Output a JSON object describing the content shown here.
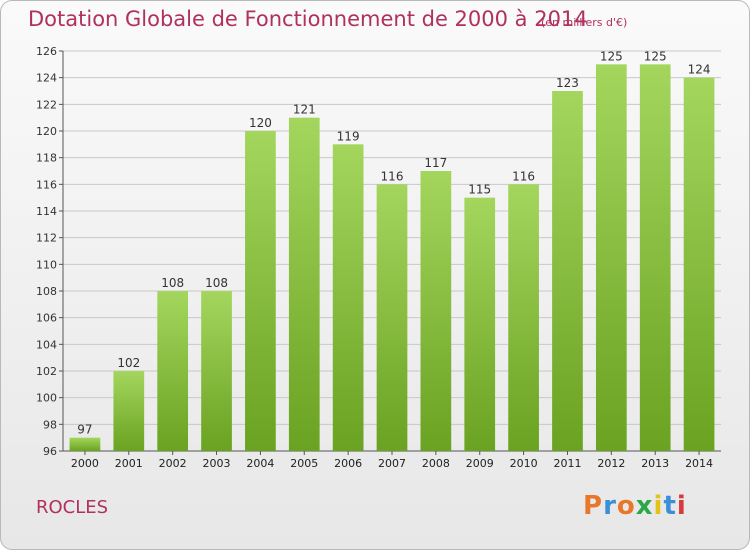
{
  "title": "Dotation Globale de Fonctionnement de 2000 à 2014",
  "subtitle": "(en milliers d'€)",
  "commune": "ROCLES",
  "logo": {
    "letters": [
      "P",
      "r",
      "o",
      "x",
      "i",
      "t",
      "i"
    ],
    "colors": [
      "#e8762b",
      "#3a8fd6",
      "#e8762b",
      "#2aa84a",
      "#e2c319",
      "#3a8fd6",
      "#d63a3a"
    ]
  },
  "colors": {
    "bar_light": "#a4d65e",
    "bar_dark": "#6aa221",
    "grid": "#c8c8c8",
    "title": "#b0305f"
  },
  "chart_data": {
    "type": "bar",
    "title": "Dotation Globale de Fonctionnement de 2000 à 2014",
    "subtitle": "(en milliers d'€)",
    "xlabel": "",
    "ylabel": "",
    "categories": [
      "2000",
      "2001",
      "2002",
      "2003",
      "2004",
      "2005",
      "2006",
      "2007",
      "2008",
      "2009",
      "2010",
      "2011",
      "2012",
      "2013",
      "2014"
    ],
    "values": [
      97,
      102,
      108,
      108,
      120,
      121,
      119,
      116,
      117,
      115,
      116,
      123,
      125,
      125,
      124
    ],
    "ylim": [
      96,
      126
    ],
    "yticks": [
      96,
      98,
      100,
      102,
      104,
      106,
      108,
      110,
      112,
      114,
      116,
      118,
      120,
      122,
      124,
      126
    ],
    "grid": true
  }
}
